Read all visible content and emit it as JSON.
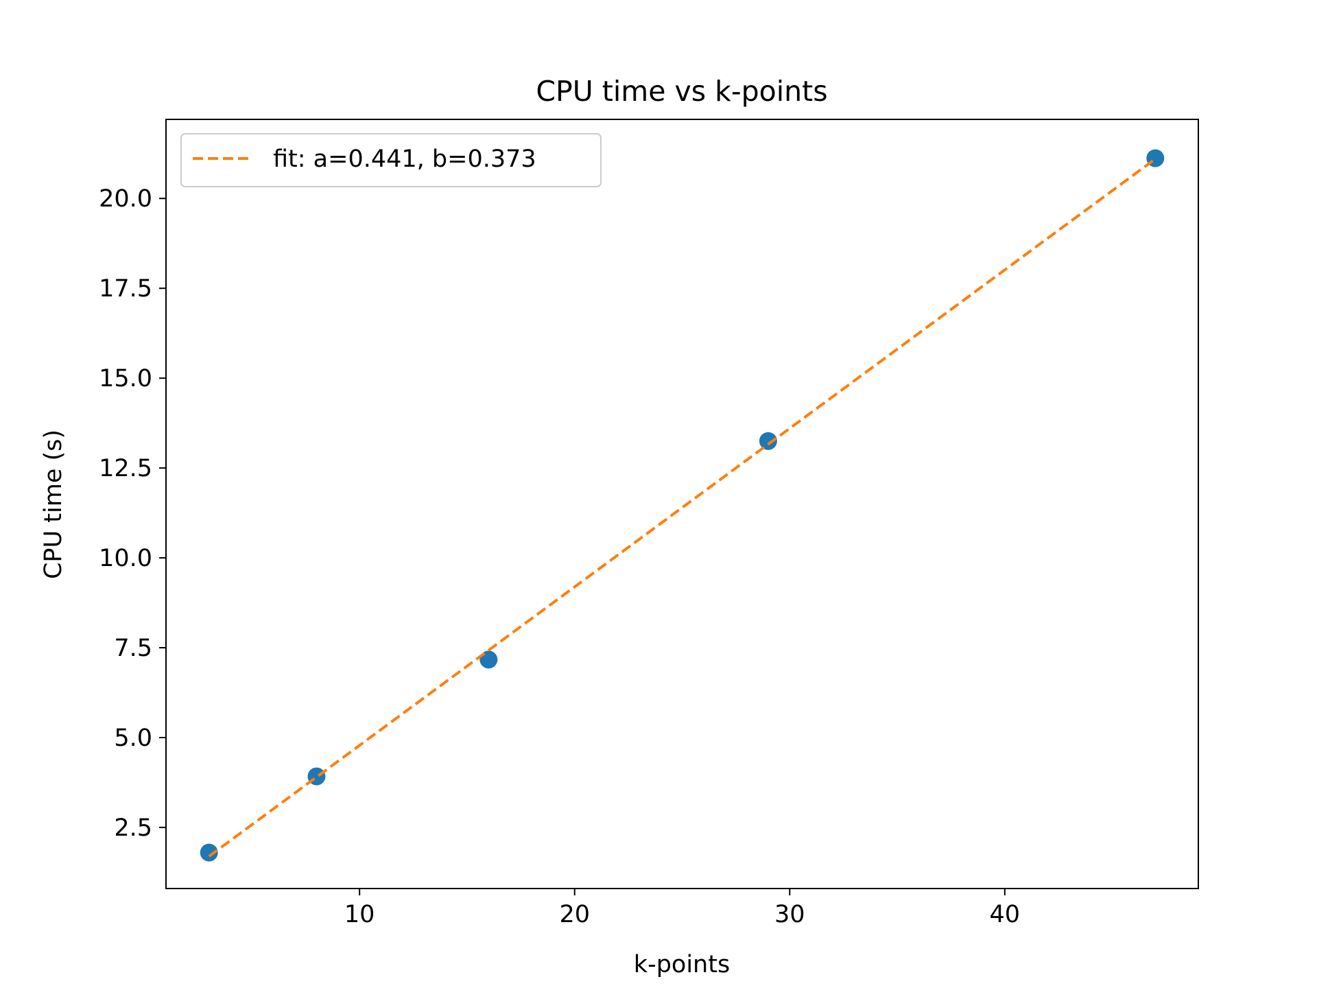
{
  "chart_data": {
    "type": "scatter",
    "title": "CPU time vs k-points",
    "xlabel": "k-points",
    "ylabel": "CPU time (s)",
    "xlim": [
      1.0,
      49.0
    ],
    "ylim": [
      0.8,
      22.2
    ],
    "xticks": [
      10,
      20,
      30,
      40
    ],
    "xtick_labels": [
      "10",
      "20",
      "30",
      "40"
    ],
    "yticks": [
      2.5,
      5.0,
      7.5,
      10.0,
      12.5,
      15.0,
      17.5,
      20.0
    ],
    "ytick_labels": [
      "2.5",
      "5.0",
      "7.5",
      "10.0",
      "12.5",
      "15.0",
      "17.5",
      "20.0"
    ],
    "grid": false,
    "legend_position": "upper-left",
    "series": [
      {
        "kind": "scatter",
        "color": "#1f77b4",
        "x": [
          3,
          8,
          16,
          29,
          47
        ],
        "y": [
          1.8,
          3.92,
          7.17,
          13.25,
          21.12
        ]
      },
      {
        "kind": "line",
        "name": "fit: a=0.441, b=0.373",
        "style": "dashed",
        "color": "#ff7f0e",
        "x": [
          3,
          47
        ],
        "y": [
          1.696,
          21.1
        ]
      }
    ]
  }
}
